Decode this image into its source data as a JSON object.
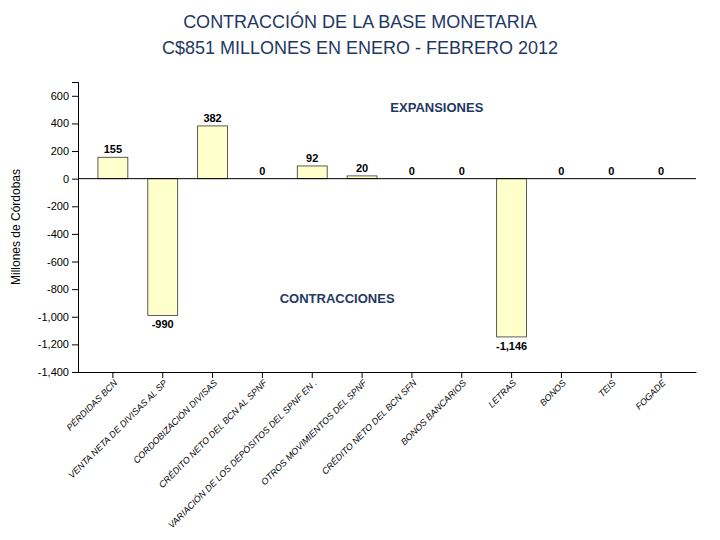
{
  "chart_data": {
    "type": "bar",
    "title": "CONTRACCIÓN DE LA BASE MONETARIA",
    "subtitle": "C$851 MILLONES EN ENERO - FEBRERO 2012",
    "ylabel": "Millones de Córdobas",
    "categories": [
      "PÉRDIDAS BCN",
      "VENTA NETA DE DIVISAS AL SP",
      "CORDOBIZACIÓN DIVISAS",
      "CRÉDITO NETO DEL BCN AL SPNF",
      "VARIACIÓN DE LOS DEPÓSITOS DEL SPNF EN .",
      "OTROS MOVIMIENTOS DEL SPNF",
      "CRÉDITO NETO DEL BCN SFN",
      "BONOS BANCARIOS",
      "LETRAS",
      "BONOS",
      "TEIS",
      "FOGADE"
    ],
    "values": [
      155,
      -990,
      382,
      0,
      92,
      20,
      0,
      0,
      -1146,
      0,
      0,
      0
    ],
    "value_labels": [
      "155",
      "-990",
      "382",
      "0",
      "92",
      "20",
      "0",
      "0",
      "-1,146",
      "0",
      "0",
      "0"
    ],
    "data_labels": true,
    "color": "#FFFFCC",
    "ylim": [
      -1400,
      700
    ],
    "yticks": [
      600,
      400,
      200,
      0,
      -200,
      -400,
      -600,
      -800,
      {
        "value": -1000,
        "label": "-1,000"
      },
      {
        "value": -1200,
        "label": "-1,200"
      },
      {
        "value": -1400,
        "label": "-1,400"
      }
    ],
    "annotations": [
      "EXPANSIONES",
      "CONTRACCIONES"
    ]
  }
}
